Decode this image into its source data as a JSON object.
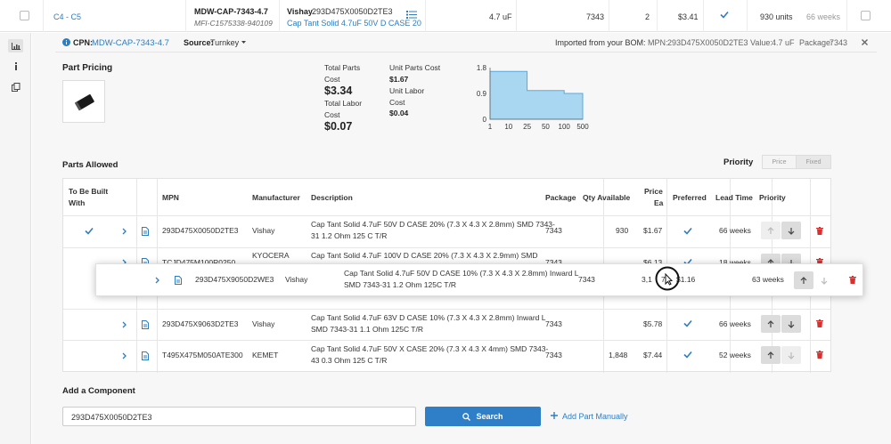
{
  "top_row": {
    "designator": "C4 - C5",
    "cpn": "MDW-CAP-7343-4.7",
    "mfi": "MFI-C1575338-940109",
    "manufacturer": "Vishay",
    "mpn": "293D475X0050D2TE3",
    "description": "Cap Tant Solid 4.7uF 50V D CASE 20",
    "value": "4.7 uF",
    "package": "7343",
    "quantity": "2",
    "price": "$3.41",
    "stock": "930 units",
    "lead_time": "66 weeks"
  },
  "detail_header": {
    "cpn_label": "CPN:",
    "cpn_value": "MDW-CAP-7343-4.7",
    "source_label": "Source:",
    "source_value": "Turnkey",
    "imported_label": "Imported from your BOM:",
    "mpn_label": "MPN:",
    "mpn_value": "293D475X0050D2TE3",
    "value_label": "Value:",
    "value_value": "4.7 uF",
    "package_label": "Package:",
    "package_value": "7343"
  },
  "pricing": {
    "section_title": "Part Pricing",
    "total_parts_label_1": "Total Parts",
    "total_parts_label_2": "Cost",
    "total_parts_value": "$3.34",
    "total_labor_label_1": "Total Labor",
    "total_labor_label_2": "Cost",
    "total_labor_value": "$0.07",
    "unit_parts_label": "Unit Parts Cost",
    "unit_parts_value": "$1.67",
    "unit_labor_label_1": "Unit Labor",
    "unit_labor_label_2": "Cost",
    "unit_labor_value": "$0.04"
  },
  "chart_data": {
    "type": "area",
    "x": [
      1,
      10,
      25,
      50,
      100,
      500
    ],
    "x_labels": [
      "1",
      "10",
      "25",
      "50",
      "100",
      "500"
    ],
    "values": [
      1.67,
      1.67,
      1.0,
      1.0,
      0.9,
      0.9
    ],
    "y_ticks": [
      "1.8",
      "0.9",
      "0"
    ],
    "ylim": [
      0,
      1.8
    ],
    "fill_color": "#a9d6f0",
    "line_color": "#5aa9dc"
  },
  "parts_allowed": {
    "title": "Parts Allowed",
    "priority_label": "Priority",
    "toggle_price": "Price",
    "toggle_fixed": "Fixed",
    "headers": {
      "to_be_built_1": "To Be Built",
      "to_be_built_2": "With",
      "mpn": "MPN",
      "manufacturer": "Manufacturer",
      "description": "Description",
      "package": "Package",
      "qty_available": "Qty Available",
      "price_ea_1": "Price",
      "price_ea_2": "Ea",
      "preferred": "Preferred",
      "lead_time": "Lead Time",
      "priority": "Priority"
    },
    "rows": [
      {
        "mpn": "293D475X0050D2TE3",
        "manufacturer": "Vishay",
        "desc1": "Cap Tant Solid 4.7uF 50V D CASE 20% (7.3 X 4.3 X 2.8mm) SMD 7343-",
        "desc2": "31 1.2 Ohm 125 C T/R",
        "package": "7343",
        "qty": "930",
        "price": "$1.67",
        "lead": "66 weeks"
      },
      {
        "mpn": "TCJD475M100R0250",
        "manufacturer": "KYOCERA",
        "desc1": "Cap Tant Solid 4.7uF 100V D CASE 20% (7.3 X 4.3 X 2.9mm) SMD",
        "desc2": "",
        "package": "7343",
        "qty": "",
        "price": "$6.13",
        "lead": "18 weeks"
      },
      {
        "mpn": "293D475X9063D2TE3",
        "manufacturer": "Vishay",
        "desc1": "Cap Tant Solid 4.7uF 63V D CASE 10% (7.3 X 4.3 X 2.8mm) Inward L",
        "desc2": "SMD 7343-31 1.1 Ohm 125C T/R",
        "package": "7343",
        "qty": "",
        "price": "$5.78",
        "lead": "66 weeks"
      },
      {
        "mpn": "T495X475M050ATE300",
        "manufacturer": "KEMET",
        "desc1": "Cap Tant Solid 4.7uF 50V X CASE 20% (7.3 X 4.3 X 4mm) SMD 7343-",
        "desc2": "43 0.3 Ohm 125 C T/R",
        "package": "7343",
        "qty": "1,848",
        "price": "$7.44",
        "lead": "52 weeks"
      }
    ],
    "drag_row": {
      "mpn": "293D475X9050D2WE3",
      "manufacturer": "Vishay",
      "desc1": "Cap Tant Solid 4.7uF 50V D CASE 10% (7.3 X 4.3 X 2.8mm) Inward L",
      "desc2": "SMD 7343-31 1.2 Ohm 125C T/R",
      "package": "7343",
      "qty": "3,1",
      "qty_tail": "7",
      "price": "$1.16",
      "lead": "63 weeks"
    }
  },
  "add_component": {
    "title": "Add a Component",
    "search_value": "293D475X0050D2TE3",
    "search_button": "Search",
    "add_manual": "Add Part Manually"
  },
  "colors": {
    "accent": "#2f7fc8",
    "delete": "#d9302f",
    "check": "#2e7dc0"
  }
}
